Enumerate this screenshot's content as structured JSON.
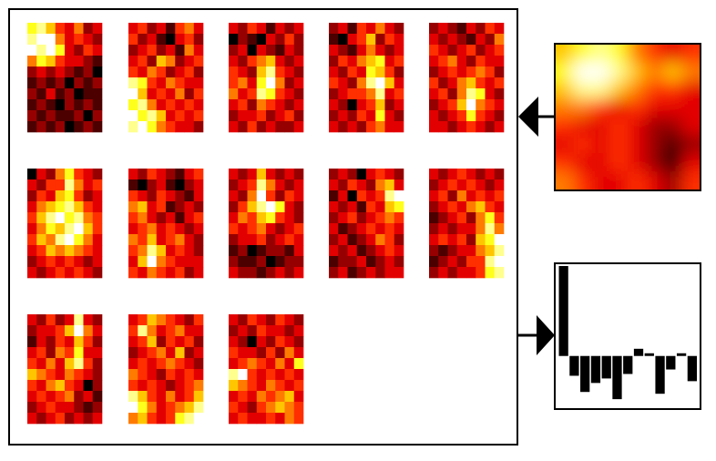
{
  "chart_data": [
    {
      "type": "heatmap",
      "colormap": "hot",
      "zlim": [
        0,
        9
      ],
      "values": [
        [
          7,
          8,
          6,
          4,
          3,
          5,
          2,
          3
        ],
        [
          8,
          9,
          9,
          5,
          3,
          4,
          3,
          2
        ],
        [
          9,
          8,
          9,
          7,
          3,
          2,
          4,
          3
        ],
        [
          5,
          7,
          6,
          4,
          3,
          3,
          2,
          1
        ],
        [
          2,
          3,
          2,
          3,
          2,
          1,
          2,
          0
        ],
        [
          1,
          2,
          1,
          2,
          0,
          2,
          1,
          2
        ],
        [
          2,
          1,
          3,
          1,
          2,
          0,
          1,
          1
        ],
        [
          1,
          2,
          1,
          0,
          2,
          1,
          2,
          1
        ],
        [
          2,
          1,
          2,
          1,
          1,
          2,
          0,
          2
        ],
        [
          1,
          2,
          1,
          2,
          0,
          1,
          2,
          1
        ]
      ]
    },
    {
      "type": "heatmap",
      "colormap": "hot",
      "zlim": [
        0,
        9
      ],
      "values": [
        [
          3,
          4,
          2,
          3,
          1,
          4,
          5,
          3
        ],
        [
          4,
          2,
          3,
          1,
          0,
          3,
          4,
          2
        ],
        [
          2,
          3,
          4,
          2,
          3,
          1,
          5,
          3
        ],
        [
          3,
          4,
          2,
          6,
          5,
          2,
          3,
          4
        ],
        [
          4,
          3,
          5,
          4,
          2,
          3,
          4,
          2
        ],
        [
          8,
          7,
          4,
          3,
          5,
          4,
          3,
          3
        ],
        [
          9,
          6,
          3,
          4,
          3,
          5,
          2,
          4
        ],
        [
          7,
          8,
          5,
          3,
          4,
          3,
          4,
          3
        ],
        [
          9,
          7,
          8,
          6,
          3,
          4,
          3,
          4
        ],
        [
          8,
          9,
          7,
          5,
          4,
          3,
          3,
          2
        ]
      ]
    },
    {
      "type": "heatmap",
      "colormap": "hot",
      "zlim": [
        0,
        9
      ],
      "values": [
        [
          3,
          2,
          4,
          3,
          1,
          3,
          2,
          3
        ],
        [
          0,
          2,
          1,
          0,
          3,
          2,
          4,
          2
        ],
        [
          2,
          3,
          0,
          3,
          2,
          1,
          3,
          2
        ],
        [
          3,
          2,
          4,
          5,
          6,
          3,
          2,
          3
        ],
        [
          4,
          3,
          2,
          6,
          8,
          4,
          3,
          2
        ],
        [
          4,
          5,
          3,
          7,
          9,
          5,
          2,
          3
        ],
        [
          5,
          3,
          4,
          8,
          7,
          4,
          3,
          2
        ],
        [
          3,
          4,
          2,
          5,
          4,
          3,
          2,
          3
        ],
        [
          2,
          3,
          3,
          4,
          2,
          3,
          4,
          2
        ],
        [
          3,
          2,
          4,
          2,
          3,
          2,
          2,
          3
        ]
      ]
    },
    {
      "type": "heatmap",
      "colormap": "hot",
      "zlim": [
        0,
        9
      ],
      "values": [
        [
          2,
          3,
          1,
          4,
          3,
          5,
          3,
          2
        ],
        [
          1,
          0,
          3,
          4,
          6,
          2,
          4,
          3
        ],
        [
          3,
          2,
          1,
          3,
          5,
          3,
          2,
          3
        ],
        [
          2,
          4,
          3,
          5,
          6,
          7,
          3,
          4
        ],
        [
          3,
          2,
          4,
          3,
          7,
          6,
          4,
          2
        ],
        [
          4,
          3,
          2,
          5,
          8,
          9,
          6,
          3
        ],
        [
          2,
          3,
          4,
          4,
          5,
          8,
          3,
          4
        ],
        [
          3,
          2,
          0,
          3,
          4,
          6,
          2,
          3
        ],
        [
          2,
          3,
          2,
          4,
          3,
          7,
          3,
          2
        ],
        [
          3,
          2,
          3,
          2,
          4,
          5,
          3,
          3
        ]
      ]
    },
    {
      "type": "heatmap",
      "colormap": "hot",
      "zlim": [
        0,
        9
      ],
      "values": [
        [
          2,
          3,
          2,
          1,
          3,
          2,
          4,
          3
        ],
        [
          3,
          2,
          3,
          2,
          1,
          3,
          2,
          5
        ],
        [
          4,
          3,
          2,
          3,
          4,
          2,
          3,
          4
        ],
        [
          3,
          4,
          5,
          3,
          2,
          4,
          3,
          3
        ],
        [
          2,
          3,
          4,
          3,
          4,
          5,
          4,
          2
        ],
        [
          4,
          2,
          3,
          5,
          6,
          4,
          3,
          4
        ],
        [
          3,
          4,
          2,
          5,
          8,
          7,
          3,
          2
        ],
        [
          2,
          3,
          4,
          6,
          9,
          5,
          4,
          3
        ],
        [
          3,
          2,
          3,
          4,
          7,
          4,
          3,
          2
        ],
        [
          3,
          3,
          2,
          3,
          4,
          3,
          2,
          3
        ]
      ]
    },
    {
      "type": "heatmap",
      "colormap": "hot",
      "zlim": [
        0,
        9
      ],
      "values": [
        [
          0,
          3,
          2,
          5,
          7,
          4,
          3,
          2
        ],
        [
          3,
          2,
          4,
          4,
          8,
          5,
          3,
          4
        ],
        [
          2,
          4,
          3,
          6,
          7,
          4,
          2,
          3
        ],
        [
          3,
          5,
          6,
          7,
          8,
          6,
          4,
          3
        ],
        [
          4,
          6,
          8,
          9,
          7,
          8,
          5,
          4
        ],
        [
          3,
          5,
          7,
          6,
          8,
          9,
          6,
          4
        ],
        [
          4,
          6,
          5,
          8,
          9,
          7,
          5,
          3
        ],
        [
          3,
          4,
          6,
          5,
          6,
          5,
          4,
          3
        ],
        [
          2,
          3,
          4,
          3,
          4,
          3,
          2,
          3
        ],
        [
          3,
          2,
          3,
          4,
          3,
          4,
          3,
          2
        ]
      ]
    },
    {
      "type": "heatmap",
      "colormap": "hot",
      "zlim": [
        0,
        9
      ],
      "values": [
        [
          3,
          2,
          4,
          3,
          2,
          1,
          3,
          4
        ],
        [
          1,
          0,
          2,
          3,
          1,
          0,
          2,
          3
        ],
        [
          4,
          3,
          2,
          4,
          3,
          2,
          1,
          3
        ],
        [
          5,
          6,
          3,
          4,
          1,
          2,
          3,
          2
        ],
        [
          4,
          5,
          3,
          2,
          3,
          1,
          3,
          4
        ],
        [
          3,
          4,
          5,
          3,
          4,
          3,
          2,
          3
        ],
        [
          5,
          4,
          6,
          3,
          4,
          5,
          3,
          2
        ],
        [
          4,
          5,
          8,
          6,
          3,
          4,
          3,
          2
        ],
        [
          3,
          6,
          9,
          5,
          4,
          3,
          3,
          3
        ],
        [
          4,
          3,
          5,
          4,
          3,
          4,
          2,
          3
        ]
      ]
    },
    {
      "type": "heatmap",
      "colormap": "hot",
      "zlim": [
        0,
        9
      ],
      "values": [
        [
          3,
          2,
          3,
          6,
          3,
          2,
          3,
          2
        ],
        [
          2,
          3,
          4,
          8,
          5,
          3,
          2,
          3
        ],
        [
          3,
          2,
          5,
          9,
          4,
          2,
          4,
          3
        ],
        [
          2,
          4,
          6,
          8,
          9,
          7,
          3,
          2
        ],
        [
          3,
          5,
          4,
          6,
          7,
          4,
          3,
          2
        ],
        [
          4,
          3,
          4,
          5,
          3,
          2,
          3,
          4
        ],
        [
          2,
          3,
          3,
          4,
          2,
          3,
          4,
          3
        ],
        [
          1,
          2,
          0,
          1,
          2,
          2,
          1,
          3
        ],
        [
          2,
          1,
          1,
          2,
          0,
          1,
          2,
          2
        ],
        [
          3,
          2,
          2,
          1,
          2,
          3,
          2,
          3
        ]
      ]
    },
    {
      "type": "heatmap",
      "colormap": "hot",
      "zlim": [
        0,
        9
      ],
      "values": [
        [
          2,
          3,
          2,
          0,
          3,
          4,
          3,
          2
        ],
        [
          3,
          2,
          4,
          3,
          2,
          5,
          6,
          3
        ],
        [
          1,
          3,
          0,
          4,
          3,
          4,
          8,
          9
        ],
        [
          3,
          2,
          3,
          1,
          4,
          3,
          6,
          7
        ],
        [
          2,
          3,
          4,
          2,
          3,
          4,
          5,
          4
        ],
        [
          3,
          1,
          2,
          3,
          4,
          3,
          4,
          3
        ],
        [
          2,
          3,
          1,
          2,
          3,
          5,
          4,
          2
        ],
        [
          3,
          2,
          3,
          1,
          2,
          3,
          4,
          3
        ],
        [
          1,
          2,
          2,
          3,
          1,
          2,
          3,
          2
        ],
        [
          2,
          3,
          1,
          2,
          3,
          2,
          3,
          3
        ]
      ]
    },
    {
      "type": "heatmap",
      "colormap": "hot",
      "zlim": [
        0,
        9
      ],
      "values": [
        [
          3,
          2,
          3,
          4,
          3,
          2,
          3,
          2
        ],
        [
          2,
          3,
          4,
          3,
          4,
          3,
          2,
          3
        ],
        [
          3,
          4,
          2,
          5,
          3,
          4,
          3,
          4
        ],
        [
          2,
          3,
          4,
          3,
          5,
          6,
          4,
          3
        ],
        [
          1,
          2,
          3,
          4,
          2,
          5,
          7,
          4
        ],
        [
          2,
          3,
          2,
          3,
          3,
          5,
          8,
          5
        ],
        [
          3,
          4,
          3,
          4,
          2,
          6,
          7,
          9
        ],
        [
          2,
          1,
          2,
          3,
          3,
          5,
          6,
          8
        ],
        [
          1,
          2,
          3,
          2,
          4,
          4,
          8,
          9
        ],
        [
          2,
          3,
          2,
          3,
          3,
          4,
          7,
          8
        ]
      ]
    },
    {
      "type": "heatmap",
      "colormap": "hot",
      "zlim": [
        0,
        9
      ],
      "values": [
        [
          3,
          2,
          4,
          2,
          3,
          8,
          3,
          2
        ],
        [
          2,
          3,
          3,
          4,
          6,
          9,
          5,
          3
        ],
        [
          1,
          3,
          2,
          4,
          3,
          6,
          4,
          2
        ],
        [
          3,
          4,
          2,
          5,
          4,
          7,
          3,
          3
        ],
        [
          4,
          3,
          5,
          3,
          6,
          8,
          4,
          2
        ],
        [
          6,
          5,
          4,
          3,
          5,
          4,
          3,
          2
        ],
        [
          4,
          3,
          5,
          6,
          4,
          3,
          0,
          2
        ],
        [
          3,
          4,
          3,
          4,
          5,
          2,
          3,
          1
        ],
        [
          2,
          3,
          4,
          3,
          3,
          2,
          1,
          2
        ],
        [
          3,
          2,
          3,
          4,
          2,
          3,
          2,
          3
        ]
      ]
    },
    {
      "type": "heatmap",
      "colormap": "hot",
      "zlim": [
        0,
        9
      ],
      "values": [
        [
          3,
          4,
          6,
          5,
          4,
          3,
          2,
          4
        ],
        [
          4,
          8,
          5,
          3,
          4,
          5,
          3,
          3
        ],
        [
          3,
          4,
          6,
          2,
          4,
          3,
          4,
          2
        ],
        [
          2,
          3,
          4,
          5,
          3,
          6,
          2,
          3
        ],
        [
          3,
          4,
          3,
          4,
          5,
          4,
          3,
          2
        ],
        [
          5,
          4,
          3,
          2,
          4,
          3,
          4,
          3
        ],
        [
          4,
          3,
          4,
          3,
          2,
          3,
          4,
          5
        ],
        [
          8,
          6,
          4,
          3,
          5,
          3,
          4,
          6
        ],
        [
          9,
          7,
          5,
          3,
          4,
          5,
          6,
          8
        ],
        [
          5,
          6,
          4,
          3,
          4,
          7,
          8,
          9
        ]
      ]
    },
    {
      "type": "heatmap",
      "colormap": "hot",
      "zlim": [
        0,
        9
      ],
      "values": [
        [
          3,
          2,
          4,
          3,
          2,
          4,
          3,
          2
        ],
        [
          2,
          3,
          2,
          4,
          3,
          3,
          2,
          3
        ],
        [
          3,
          2,
          0,
          3,
          2,
          4,
          3,
          2
        ],
        [
          4,
          3,
          3,
          2,
          4,
          2,
          5,
          3
        ],
        [
          3,
          4,
          5,
          4,
          3,
          5,
          3,
          7
        ],
        [
          8,
          9,
          4,
          3,
          4,
          3,
          4,
          3
        ],
        [
          6,
          5,
          4,
          3,
          5,
          4,
          3,
          4
        ],
        [
          3,
          4,
          3,
          5,
          4,
          5,
          6,
          3
        ],
        [
          4,
          3,
          2,
          4,
          5,
          6,
          5,
          4
        ],
        [
          3,
          4,
          3,
          3,
          4,
          3,
          5,
          4
        ]
      ]
    },
    {
      "type": "heatmap",
      "colormap": "hot",
      "zlim": [
        0,
        9
      ],
      "smooth": true,
      "values": [
        [
          6,
          7,
          8,
          7,
          5,
          4,
          3,
          4
        ],
        [
          7,
          9,
          9,
          8,
          6,
          5,
          6,
          5
        ],
        [
          6,
          8,
          8,
          6,
          5,
          4,
          4,
          3
        ],
        [
          5,
          5,
          4,
          3,
          4,
          3,
          3,
          3
        ],
        [
          4,
          3,
          3,
          4,
          3,
          2,
          2,
          3
        ],
        [
          3,
          4,
          3,
          4,
          3,
          2,
          1,
          2
        ],
        [
          4,
          3,
          3,
          4,
          3,
          2,
          0,
          3
        ],
        [
          5,
          4,
          3,
          3,
          4,
          3,
          2,
          4
        ]
      ]
    },
    {
      "type": "bar",
      "color": "#000000",
      "values": [
        100,
        -22,
        -40,
        -30,
        -25,
        -48,
        -20,
        8,
        3,
        -42,
        -15,
        3,
        -28
      ],
      "ylim": [
        -58,
        102
      ]
    }
  ]
}
